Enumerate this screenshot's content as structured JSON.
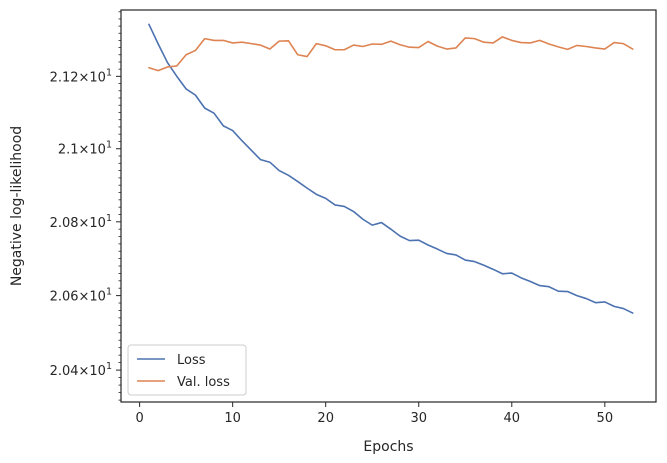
{
  "chart_data": {
    "type": "line",
    "title": "",
    "xlabel": "Epochs",
    "ylabel": "Negative log-likelihood",
    "y_scale": "log",
    "xlim": [
      -2,
      55.5
    ],
    "ylim": [
      20.315,
      21.385
    ],
    "x_ticks": [
      0,
      10,
      20,
      30,
      40,
      50
    ],
    "x_tick_labels": [
      "0",
      "10",
      "20",
      "30",
      "40",
      "50"
    ],
    "y_ticks": [
      20.4,
      20.6,
      20.8,
      21.0,
      21.2
    ],
    "y_tick_labels": [
      {
        "base": "2.04",
        "exp": "1"
      },
      {
        "base": "2.06",
        "exp": "1"
      },
      {
        "base": "2.08",
        "exp": "1"
      },
      {
        "base": "2.1",
        "exp": "1"
      },
      {
        "base": "2.12",
        "exp": "1"
      }
    ],
    "grid": false,
    "legend_position": "lower-left",
    "colors": {
      "loss": "#4c72b0",
      "val_loss": "#dd8452",
      "axis": "#262626"
    },
    "x": [
      1,
      2,
      3,
      4,
      5,
      6,
      7,
      8,
      9,
      10,
      11,
      12,
      13,
      14,
      15,
      16,
      17,
      18,
      19,
      20,
      21,
      22,
      23,
      24,
      25,
      26,
      27,
      28,
      29,
      30,
      31,
      32,
      33,
      34,
      35,
      36,
      37,
      38,
      39,
      40,
      41,
      42,
      43,
      44,
      45,
      46,
      47,
      48,
      49,
      50,
      51,
      52,
      53
    ],
    "series": [
      {
        "name": "Loss",
        "values": [
          21.345,
          21.29,
          21.238,
          21.2,
          21.165,
          21.148,
          21.112,
          21.098,
          21.063,
          21.05,
          21.022,
          20.996,
          20.97,
          20.963,
          20.94,
          20.927,
          20.91,
          20.892,
          20.875,
          20.864,
          20.846,
          20.842,
          20.828,
          20.807,
          20.791,
          20.798,
          20.78,
          20.761,
          20.749,
          20.75,
          20.737,
          20.726,
          20.714,
          20.71,
          20.696,
          20.692,
          20.682,
          20.671,
          20.659,
          20.661,
          20.648,
          20.638,
          20.627,
          20.624,
          20.612,
          20.611,
          20.6,
          20.592,
          20.581,
          20.583,
          20.571,
          20.565,
          20.553
        ]
      },
      {
        "name": "Val. loss",
        "values": [
          21.224,
          21.216,
          21.226,
          21.229,
          21.26,
          21.272,
          21.305,
          21.3,
          21.3,
          21.293,
          21.295,
          21.291,
          21.287,
          21.276,
          21.298,
          21.299,
          21.26,
          21.255,
          21.291,
          21.285,
          21.274,
          21.274,
          21.287,
          21.283,
          21.29,
          21.289,
          21.298,
          21.288,
          21.281,
          21.28,
          21.297,
          21.284,
          21.276,
          21.279,
          21.307,
          21.305,
          21.295,
          21.293,
          21.31,
          21.3,
          21.294,
          21.293,
          21.3,
          21.29,
          21.282,
          21.275,
          21.286,
          21.283,
          21.279,
          21.276,
          21.294,
          21.291,
          21.276
        ]
      }
    ]
  }
}
